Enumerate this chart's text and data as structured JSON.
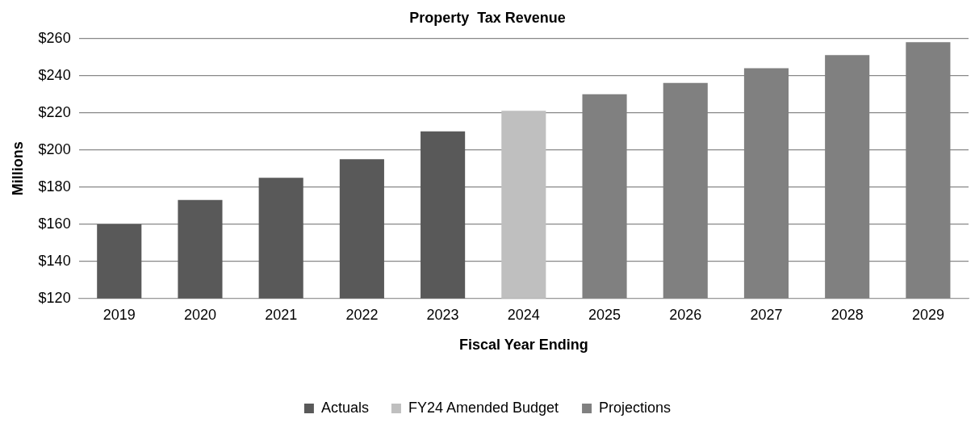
{
  "chart_data": {
    "type": "bar",
    "title": "Property  Tax Revenue",
    "xlabel": "Fiscal Year Ending",
    "ylabel": "Millions",
    "categories": [
      "2019",
      "2020",
      "2021",
      "2022",
      "2023",
      "2024",
      "2025",
      "2026",
      "2027",
      "2028",
      "2029"
    ],
    "series": [
      {
        "name": "Actuals",
        "color": "#595959",
        "values": [
          160,
          173,
          185,
          195,
          210,
          null,
          null,
          null,
          null,
          null,
          null
        ]
      },
      {
        "name": "FY24 Amended Budget",
        "color": "#bfbfbf",
        "values": [
          null,
          null,
          null,
          null,
          null,
          221,
          null,
          null,
          null,
          null,
          null
        ]
      },
      {
        "name": "Projections",
        "color": "#808080",
        "values": [
          null,
          null,
          null,
          null,
          null,
          null,
          230,
          236,
          244,
          251,
          258
        ]
      }
    ],
    "ylim": [
      120,
      260
    ],
    "yticks": [
      {
        "value": 120,
        "label": "$120"
      },
      {
        "value": 140,
        "label": "$140"
      },
      {
        "value": 160,
        "label": "$160"
      },
      {
        "value": 180,
        "label": "$180"
      },
      {
        "value": 200,
        "label": "$200"
      },
      {
        "value": 220,
        "label": "$220"
      },
      {
        "value": 240,
        "label": "$240"
      },
      {
        "value": 260,
        "label": "$260"
      }
    ],
    "grid": "y",
    "legend": "bottom"
  }
}
